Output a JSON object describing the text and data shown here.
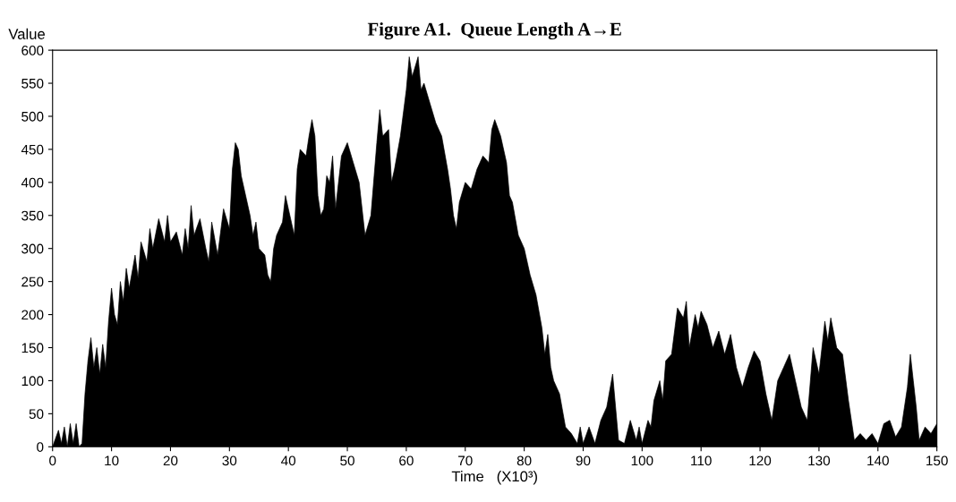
{
  "chart_data": {
    "type": "area",
    "title": "Figure A1.  Queue Length A→E",
    "xlabel": "Time   (X10³)",
    "ylabel": "Value",
    "xlim": [
      0,
      150
    ],
    "xticks": [
      0,
      10,
      20,
      30,
      40,
      50,
      60,
      70,
      80,
      90,
      100,
      110,
      120,
      130,
      140,
      150
    ],
    "ylim": [
      0,
      600
    ],
    "yticks": [
      0,
      50,
      100,
      150,
      200,
      250,
      300,
      350,
      400,
      450,
      500,
      550,
      600
    ],
    "grid": false,
    "legend": false,
    "x": [
      0,
      1,
      1.5,
      2,
      2.5,
      3,
      3.5,
      4,
      4.5,
      5,
      5.5,
      6,
      6.5,
      7,
      7.5,
      8,
      8.5,
      9,
      9.5,
      10,
      10.5,
      11,
      11.5,
      12,
      12.5,
      13,
      14,
      14.5,
      15,
      16,
      16.5,
      17,
      18,
      19,
      19.5,
      20,
      21,
      22,
      22.5,
      23,
      23.5,
      24,
      25,
      26,
      26.5,
      27,
      28,
      29,
      30,
      30.5,
      31,
      31.5,
      32,
      33,
      33.5,
      34,
      34.5,
      35,
      36,
      36.5,
      37,
      37.5,
      38,
      39,
      39.5,
      40,
      41,
      41.5,
      42,
      43,
      43.5,
      44,
      44.5,
      45,
      45.5,
      46,
      46.5,
      47,
      47.5,
      48,
      49,
      50,
      51,
      52,
      53,
      54,
      55,
      55.5,
      56,
      57,
      57.5,
      58,
      59,
      60,
      60.5,
      61,
      62,
      62.5,
      63,
      64,
      65,
      66,
      67,
      67.5,
      68,
      68.5,
      69,
      70,
      71,
      72,
      73,
      74,
      74.5,
      75,
      76,
      77,
      77.5,
      78,
      79,
      80,
      81,
      82,
      83,
      83.5,
      84,
      84.5,
      85,
      86,
      87,
      88,
      89,
      89.5,
      90,
      91,
      92,
      93,
      94,
      95,
      95.5,
      96,
      97,
      98,
      99,
      99.5,
      100,
      101,
      101.5,
      102,
      103,
      103.5,
      104,
      105,
      106,
      107,
      107.5,
      108,
      109,
      109.5,
      110,
      111,
      112,
      113,
      114,
      115,
      116,
      117,
      118,
      119,
      120,
      121,
      122,
      123,
      124,
      125,
      126,
      127,
      128,
      129,
      130,
      131,
      131.5,
      132,
      133,
      134,
      135,
      136,
      137,
      138,
      139,
      140,
      141,
      142,
      143,
      144,
      145,
      145.5,
      146,
      146.5,
      147,
      148,
      149,
      150
    ],
    "series": [
      {
        "color": "#000000",
        "values": [
          0,
          25,
          5,
          30,
          0,
          35,
          5,
          35,
          0,
          5,
          80,
          130,
          165,
          120,
          150,
          110,
          155,
          120,
          190,
          240,
          200,
          185,
          250,
          220,
          270,
          240,
          290,
          255,
          310,
          280,
          330,
          300,
          345,
          310,
          350,
          310,
          325,
          290,
          330,
          300,
          365,
          320,
          345,
          300,
          280,
          340,
          290,
          360,
          330,
          420,
          460,
          450,
          410,
          370,
          350,
          320,
          340,
          300,
          290,
          260,
          250,
          300,
          320,
          340,
          380,
          360,
          320,
          420,
          450,
          440,
          470,
          495,
          470,
          380,
          350,
          360,
          410,
          400,
          440,
          360,
          440,
          460,
          430,
          400,
          320,
          350,
          460,
          510,
          470,
          480,
          400,
          420,
          470,
          540,
          590,
          560,
          590,
          540,
          550,
          520,
          490,
          470,
          420,
          390,
          350,
          330,
          370,
          400,
          390,
          420,
          440,
          430,
          480,
          495,
          470,
          430,
          380,
          370,
          320,
          300,
          260,
          230,
          180,
          140,
          170,
          120,
          100,
          80,
          30,
          20,
          5,
          30,
          5,
          30,
          5,
          40,
          60,
          110,
          60,
          10,
          5,
          40,
          10,
          30,
          5,
          40,
          30,
          70,
          100,
          70,
          130,
          140,
          210,
          195,
          220,
          150,
          200,
          180,
          205,
          185,
          150,
          175,
          140,
          170,
          120,
          90,
          120,
          145,
          130,
          80,
          40,
          100,
          120,
          140,
          100,
          60,
          40,
          150,
          110,
          190,
          160,
          195,
          150,
          140,
          70,
          10,
          20,
          10,
          20,
          5,
          35,
          40,
          15,
          30,
          90,
          140,
          100,
          60,
          10,
          30,
          20,
          35
        ]
      }
    ]
  }
}
